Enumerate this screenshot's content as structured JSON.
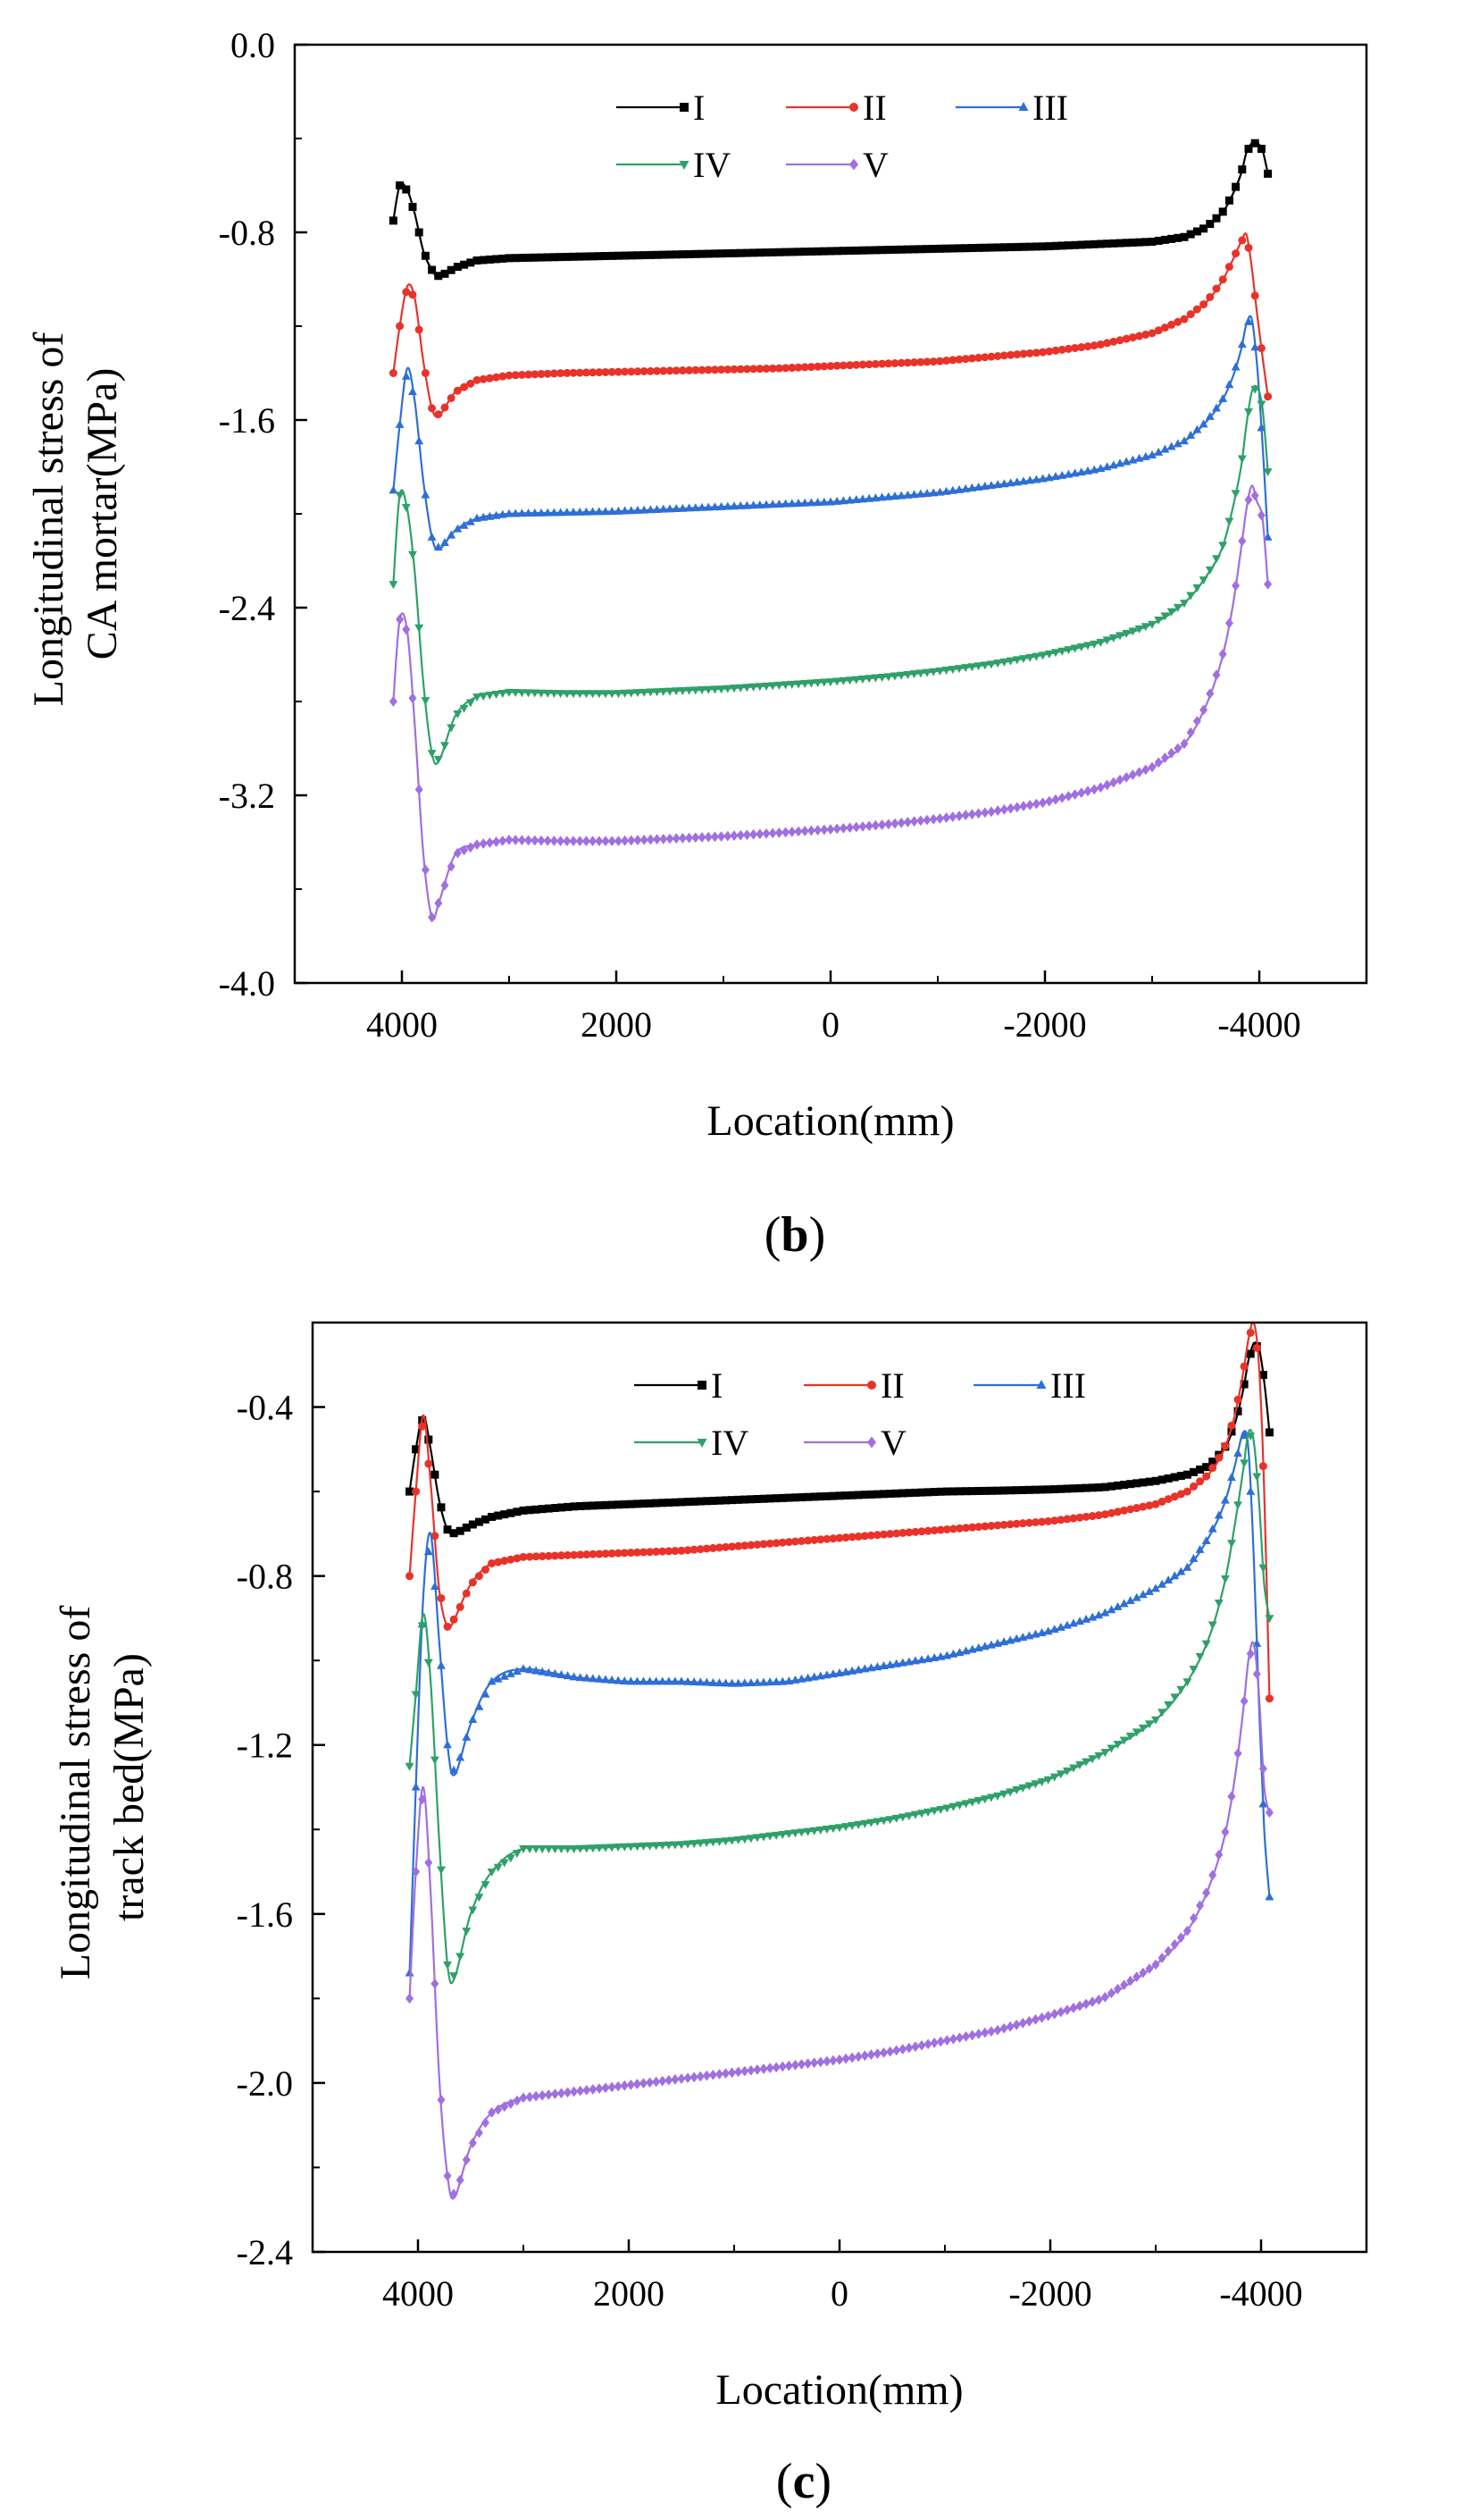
{
  "chart_data": [
    {
      "type": "line",
      "panel_label": "(b)",
      "panel_letter": "b",
      "xlabel": "Location(mm)",
      "ylabel_line1": "Longitudinal stress of",
      "ylabel_line2": "CA mortar(MPa)",
      "xlim": [
        5000,
        -5000
      ],
      "xaxis_reversed": true,
      "ylim": [
        -4.0,
        0.0
      ],
      "xticks": [
        4000,
        2000,
        0,
        -2000,
        -4000
      ],
      "xtick_labels": [
        "4000",
        "2000",
        "0",
        "-2000",
        "-4000"
      ],
      "yticks": [
        -4.0,
        -3.2,
        -2.4,
        -1.6,
        -0.8,
        0.0
      ],
      "ytick_labels": [
        "-4.0",
        "-3.2",
        "-2.4",
        "-1.6",
        "-0.8",
        "0.0"
      ],
      "grid": false,
      "legend_position": "top-center",
      "series": [
        {
          "name": "I",
          "color": "#000000",
          "marker": "square",
          "x": [
            4080,
            4020,
            3950,
            3880,
            3800,
            3720,
            3650,
            3500,
            3300,
            3000,
            2500,
            2000,
            1500,
            1000,
            500,
            0,
            -500,
            -1000,
            -1500,
            -2000,
            -2500,
            -3000,
            -3300,
            -3500,
            -3650,
            -3750,
            -3830,
            -3880,
            -3930,
            -3980,
            -4030,
            -4080
          ],
          "y": [
            -0.75,
            -0.6,
            -0.62,
            -0.72,
            -0.88,
            -0.96,
            -0.99,
            -0.95,
            -0.92,
            -0.91,
            -0.905,
            -0.9,
            -0.895,
            -0.89,
            -0.885,
            -0.88,
            -0.875,
            -0.87,
            -0.865,
            -0.86,
            -0.85,
            -0.84,
            -0.82,
            -0.78,
            -0.72,
            -0.64,
            -0.55,
            -0.46,
            -0.42,
            -0.42,
            -0.45,
            -0.55
          ]
        },
        {
          "name": "II",
          "color": "#e8332a",
          "marker": "circle",
          "x": [
            4080,
            4020,
            3950,
            3880,
            3800,
            3720,
            3650,
            3500,
            3300,
            3000,
            2500,
            2000,
            1500,
            1000,
            500,
            0,
            -500,
            -1000,
            -1500,
            -2000,
            -2500,
            -3000,
            -3300,
            -3500,
            -3650,
            -3750,
            -3830,
            -3880,
            -3930,
            -3980,
            -4030,
            -4080
          ],
          "y": [
            -1.4,
            -1.2,
            -1.03,
            -1.08,
            -1.35,
            -1.55,
            -1.58,
            -1.48,
            -1.43,
            -1.41,
            -1.4,
            -1.395,
            -1.39,
            -1.385,
            -1.38,
            -1.37,
            -1.36,
            -1.35,
            -1.33,
            -1.31,
            -1.28,
            -1.23,
            -1.17,
            -1.1,
            -1.01,
            -0.92,
            -0.84,
            -0.81,
            -0.95,
            -1.15,
            -1.33,
            -1.5
          ]
        },
        {
          "name": "III",
          "color": "#2e6fd6",
          "marker": "triangle-up",
          "x": [
            4080,
            4020,
            3950,
            3880,
            3800,
            3720,
            3650,
            3500,
            3300,
            3000,
            2500,
            2000,
            1500,
            1000,
            500,
            0,
            -500,
            -1000,
            -1500,
            -2000,
            -2500,
            -3000,
            -3300,
            -3500,
            -3650,
            -3750,
            -3830,
            -3880,
            -3930,
            -3980,
            -4030,
            -4080
          ],
          "y": [
            -1.9,
            -1.62,
            -1.38,
            -1.52,
            -1.86,
            -2.1,
            -2.15,
            -2.07,
            -2.02,
            -2.0,
            -1.995,
            -1.99,
            -1.98,
            -1.97,
            -1.96,
            -1.95,
            -1.93,
            -1.91,
            -1.88,
            -1.85,
            -1.81,
            -1.75,
            -1.69,
            -1.61,
            -1.52,
            -1.42,
            -1.3,
            -1.19,
            -1.17,
            -1.37,
            -1.7,
            -2.1
          ]
        },
        {
          "name": "IV",
          "color": "#2fa06a",
          "marker": "triangle-down",
          "x": [
            4080,
            4020,
            3950,
            3880,
            3800,
            3720,
            3650,
            3500,
            3300,
            3000,
            2500,
            2000,
            1500,
            1000,
            500,
            0,
            -500,
            -1000,
            -1500,
            -2000,
            -2500,
            -3000,
            -3300,
            -3500,
            -3650,
            -3750,
            -3830,
            -3880,
            -3930,
            -3980,
            -4030,
            -4080
          ],
          "y": [
            -2.3,
            -1.92,
            -1.98,
            -2.25,
            -2.72,
            -3.02,
            -3.05,
            -2.86,
            -2.78,
            -2.76,
            -2.765,
            -2.765,
            -2.755,
            -2.745,
            -2.73,
            -2.715,
            -2.695,
            -2.67,
            -2.64,
            -2.6,
            -2.55,
            -2.47,
            -2.38,
            -2.27,
            -2.15,
            -1.98,
            -1.8,
            -1.62,
            -1.48,
            -1.46,
            -1.55,
            -1.82
          ]
        },
        {
          "name": "V",
          "color": "#a06fe0",
          "marker": "diamond",
          "x": [
            4080,
            4020,
            3950,
            3880,
            3800,
            3720,
            3650,
            3500,
            3300,
            3000,
            2500,
            2000,
            1500,
            1000,
            500,
            0,
            -500,
            -1000,
            -1500,
            -2000,
            -2500,
            -3000,
            -3300,
            -3500,
            -3650,
            -3750,
            -3830,
            -3880,
            -3930,
            -3980,
            -4030,
            -4080
          ],
          "y": [
            -2.8,
            -2.45,
            -2.5,
            -2.9,
            -3.45,
            -3.72,
            -3.65,
            -3.45,
            -3.41,
            -3.39,
            -3.395,
            -3.395,
            -3.385,
            -3.375,
            -3.36,
            -3.345,
            -3.325,
            -3.3,
            -3.27,
            -3.23,
            -3.17,
            -3.08,
            -2.98,
            -2.82,
            -2.62,
            -2.4,
            -2.15,
            -1.98,
            -1.88,
            -1.95,
            -2.02,
            -2.3
          ]
        }
      ]
    },
    {
      "type": "line",
      "panel_label": "(c)",
      "panel_letter": "c",
      "xlabel": "Location(mm)",
      "ylabel_line1": "Longitudinal stress of",
      "ylabel_line2": "track bed(MPa)",
      "xlim": [
        5000,
        -5000
      ],
      "xaxis_reversed": true,
      "ylim": [
        -2.4,
        -0.2
      ],
      "xticks": [
        4000,
        2000,
        0,
        -2000,
        -4000
      ],
      "xtick_labels": [
        "4000",
        "2000",
        "0",
        "-2000",
        "-4000"
      ],
      "yticks": [
        -2.4,
        -2.0,
        -1.6,
        -1.2,
        -0.8,
        -0.4
      ],
      "ytick_labels": [
        "-2.4",
        "-2.0",
        "-1.6",
        "-1.2",
        "-0.8",
        "-0.4"
      ],
      "grid": false,
      "legend_position": "top-center",
      "series": [
        {
          "name": "I",
          "color": "#000000",
          "marker": "square",
          "x": [
            4080,
            4020,
            3950,
            3880,
            3800,
            3720,
            3650,
            3500,
            3300,
            3000,
            2500,
            2000,
            1500,
            1000,
            500,
            0,
            -500,
            -1000,
            -1500,
            -2000,
            -2500,
            -3000,
            -3300,
            -3500,
            -3650,
            -3750,
            -3830,
            -3880,
            -3930,
            -3980,
            -4030,
            -4080
          ],
          "y": [
            -0.6,
            -0.5,
            -0.42,
            -0.5,
            -0.62,
            -0.69,
            -0.7,
            -0.68,
            -0.66,
            -0.645,
            -0.635,
            -0.63,
            -0.625,
            -0.62,
            -0.615,
            -0.61,
            -0.605,
            -0.6,
            -0.598,
            -0.595,
            -0.59,
            -0.575,
            -0.56,
            -0.54,
            -0.5,
            -0.44,
            -0.36,
            -0.29,
            -0.25,
            -0.26,
            -0.34,
            -0.46
          ]
        },
        {
          "name": "II",
          "color": "#e8332a",
          "marker": "circle",
          "x": [
            4080,
            4020,
            3950,
            3880,
            3800,
            3720,
            3650,
            3500,
            3300,
            3000,
            2500,
            2000,
            1500,
            1000,
            500,
            0,
            -500,
            -1000,
            -1500,
            -2000,
            -2500,
            -3000,
            -3300,
            -3500,
            -3650,
            -3750,
            -3830,
            -3880,
            -3930,
            -3980,
            -4030,
            -4080
          ],
          "y": [
            -0.8,
            -0.6,
            -0.42,
            -0.58,
            -0.83,
            -0.92,
            -0.9,
            -0.82,
            -0.77,
            -0.755,
            -0.75,
            -0.745,
            -0.74,
            -0.73,
            -0.72,
            -0.71,
            -0.7,
            -0.69,
            -0.68,
            -0.67,
            -0.655,
            -0.63,
            -0.6,
            -0.56,
            -0.5,
            -0.42,
            -0.32,
            -0.24,
            -0.2,
            -0.3,
            -0.6,
            -1.09
          ]
        },
        {
          "name": "III",
          "color": "#2e6fd6",
          "marker": "triangle-up",
          "x": [
            4080,
            4020,
            3950,
            3880,
            3800,
            3720,
            3650,
            3500,
            3300,
            3000,
            2500,
            2000,
            1500,
            1000,
            500,
            0,
            -500,
            -1000,
            -1500,
            -2000,
            -2500,
            -3000,
            -3300,
            -3500,
            -3650,
            -3750,
            -3830,
            -3880,
            -3930,
            -3980,
            -4030,
            -4080
          ],
          "y": [
            -1.74,
            -1.3,
            -0.85,
            -0.7,
            -0.95,
            -1.2,
            -1.27,
            -1.15,
            -1.05,
            -1.02,
            -1.04,
            -1.05,
            -1.05,
            -1.055,
            -1.05,
            -1.03,
            -1.01,
            -0.99,
            -0.96,
            -0.93,
            -0.89,
            -0.83,
            -0.78,
            -0.71,
            -0.63,
            -0.54,
            -0.46,
            -0.5,
            -0.75,
            -1.1,
            -1.4,
            -1.56
          ]
        },
        {
          "name": "IV",
          "color": "#2fa06a",
          "marker": "triangle-down",
          "x": [
            4080,
            4020,
            3950,
            3880,
            3800,
            3720,
            3650,
            3500,
            3300,
            3000,
            2500,
            2000,
            1500,
            1000,
            500,
            0,
            -500,
            -1000,
            -1500,
            -2000,
            -2500,
            -3000,
            -3300,
            -3500,
            -3650,
            -3750,
            -3830,
            -3880,
            -3930,
            -3980,
            -4030,
            -4080
          ],
          "y": [
            -1.25,
            -1.08,
            -0.89,
            -1.05,
            -1.42,
            -1.72,
            -1.75,
            -1.6,
            -1.5,
            -1.445,
            -1.445,
            -1.44,
            -1.435,
            -1.425,
            -1.41,
            -1.395,
            -1.375,
            -1.35,
            -1.32,
            -1.28,
            -1.22,
            -1.14,
            -1.05,
            -0.95,
            -0.82,
            -0.68,
            -0.55,
            -0.46,
            -0.48,
            -0.62,
            -0.82,
            -0.9
          ]
        },
        {
          "name": "V",
          "color": "#a06fe0",
          "marker": "diamond",
          "x": [
            4080,
            4020,
            3950,
            3880,
            3800,
            3720,
            3650,
            3500,
            3300,
            3000,
            2500,
            2000,
            1500,
            1000,
            500,
            0,
            -500,
            -1000,
            -1500,
            -2000,
            -2500,
            -3000,
            -3300,
            -3500,
            -3650,
            -3750,
            -3830,
            -3880,
            -3930,
            -3980,
            -4030,
            -4080
          ],
          "y": [
            -1.8,
            -1.5,
            -1.3,
            -1.55,
            -1.98,
            -2.22,
            -2.27,
            -2.15,
            -2.07,
            -2.035,
            -2.02,
            -2.005,
            -1.99,
            -1.975,
            -1.96,
            -1.945,
            -1.925,
            -1.9,
            -1.875,
            -1.84,
            -1.8,
            -1.72,
            -1.64,
            -1.54,
            -1.42,
            -1.28,
            -1.12,
            -1.0,
            -0.96,
            -1.08,
            -1.3,
            -1.36
          ]
        }
      ]
    }
  ]
}
